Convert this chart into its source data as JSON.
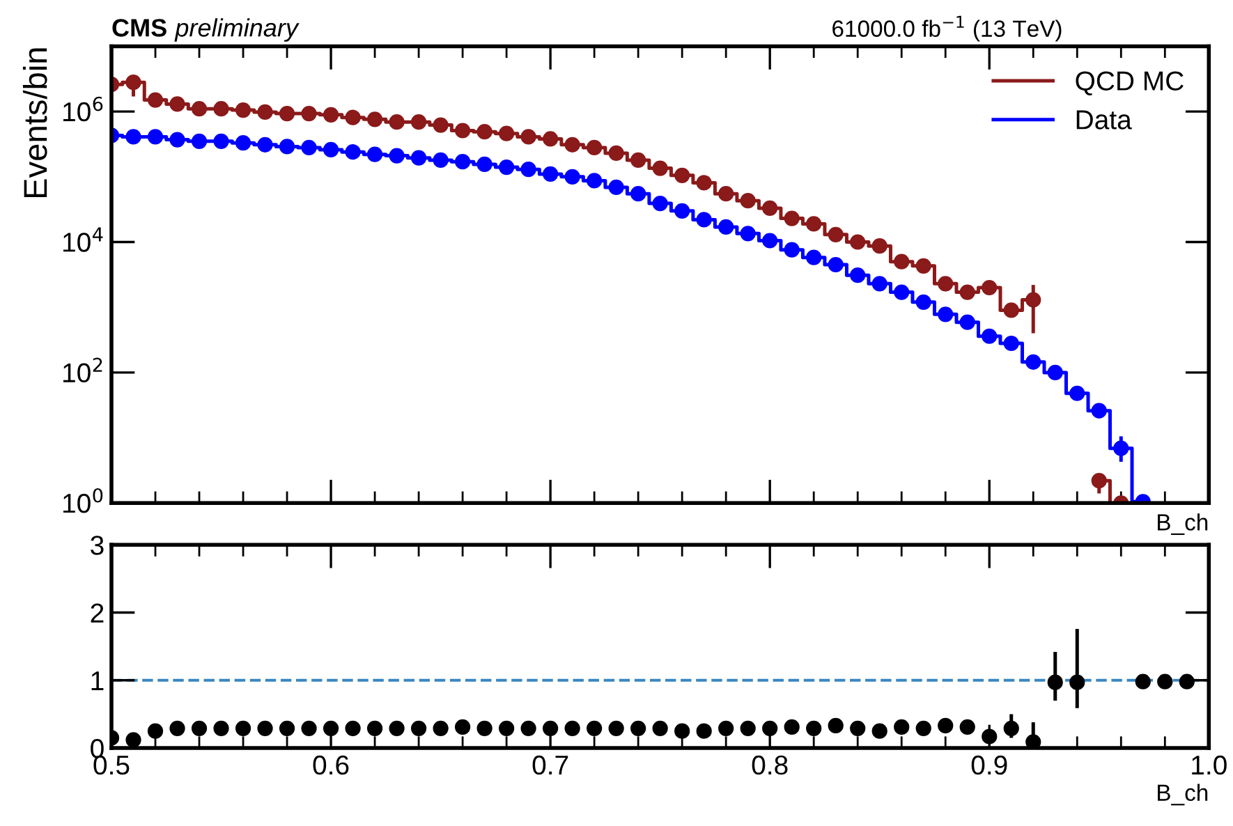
{
  "chart_data": [
    {
      "type": "step",
      "title": "CMS",
      "subtitle": "preliminary",
      "annotations": [
        "61000.0 fb$^{−1}$ (13 TeV)"
      ],
      "xlabel": "B_ch",
      "ylabel": "Events/bin",
      "log": "y",
      "marker": "circle",
      "legend": "top right",
      "tick_labels": "y",
      "x": [
        0.5,
        0.51,
        0.52,
        0.53,
        0.54,
        0.55,
        0.56,
        0.57,
        0.58,
        0.59,
        0.6,
        0.61,
        0.62,
        0.63,
        0.64,
        0.65,
        0.66,
        0.67,
        0.68,
        0.69,
        0.7,
        0.71,
        0.72,
        0.73,
        0.74,
        0.75,
        0.76,
        0.77,
        0.78,
        0.79,
        0.8,
        0.81,
        0.82,
        0.83,
        0.84,
        0.85,
        0.86,
        0.87,
        0.88,
        0.89,
        0.9,
        0.91,
        0.92,
        0.93,
        0.94,
        0.95,
        0.96,
        0.97
      ],
      "series": [
        {
          "name": "QCD MC",
          "color": "#8b1a1a",
          "values": [
            2600000,
            2800000,
            1500000,
            1300000,
            1100000,
            1100000,
            1050000,
            980000,
            930000,
            930000,
            890000,
            810000,
            760000,
            690000,
            690000,
            620000,
            510000,
            490000,
            460000,
            410000,
            380000,
            310000,
            280000,
            230000,
            180000,
            135000,
            105000,
            81000,
            55000,
            43000,
            33000,
            23000,
            19000,
            13000,
            10000,
            8700,
            5000,
            4300,
            2300,
            1700,
            2000,
            900,
            1300,
            null,
            null,
            2.2,
            1.0,
            null
          ],
          "errors": [
            null,
            [
              1700000,
              3600000
            ],
            null,
            null,
            null,
            null,
            null,
            null,
            null,
            null,
            null,
            null,
            null,
            null,
            null,
            null,
            null,
            null,
            null,
            null,
            null,
            null,
            null,
            null,
            null,
            null,
            null,
            null,
            null,
            null,
            null,
            null,
            null,
            null,
            null,
            null,
            null,
            null,
            [
              1900,
              2800
            ],
            null,
            null,
            [
              700,
              1100
            ],
            [
              400,
              2200
            ],
            null,
            null,
            [
              1.4,
              2.8
            ],
            null,
            null
          ]
        },
        {
          "name": "Data",
          "color": "#0000ff",
          "values": [
            430000,
            410000,
            410000,
            370000,
            350000,
            350000,
            330000,
            310000,
            290000,
            280000,
            260000,
            240000,
            220000,
            210000,
            195000,
            180000,
            170000,
            155000,
            140000,
            130000,
            110000,
            100000,
            87000,
            69000,
            55000,
            39000,
            30000,
            22000,
            17000,
            13500,
            10500,
            7600,
            5800,
            4500,
            3100,
            2300,
            1700,
            1200,
            780,
            590,
            360,
            280,
            145,
            100,
            48,
            26,
            6.9,
            1.05
          ],
          "errors": [
            null,
            null,
            null,
            null,
            null,
            null,
            null,
            null,
            null,
            null,
            null,
            null,
            null,
            null,
            null,
            null,
            null,
            null,
            null,
            null,
            null,
            null,
            null,
            null,
            null,
            null,
            null,
            null,
            null,
            null,
            null,
            null,
            null,
            null,
            null,
            null,
            null,
            null,
            null,
            null,
            null,
            null,
            null,
            null,
            null,
            [
              20,
              32
            ],
            [
              4.3,
              10.5
            ],
            null
          ]
        }
      ],
      "xlim": [
        0.5,
        1.0
      ],
      "xticks": [
        0.5,
        {
          "value": 0.52,
          "label": null
        },
        {
          "value": 0.54,
          "label": null
        },
        {
          "value": 0.56,
          "label": null
        },
        {
          "value": 0.58,
          "label": null
        },
        0.6,
        {
          "value": 0.62,
          "label": null
        },
        {
          "value": 0.64,
          "label": null
        },
        {
          "value": 0.66,
          "label": null
        },
        {
          "value": 0.68,
          "label": null
        },
        0.7,
        {
          "value": 0.72,
          "label": null
        },
        {
          "value": 0.74,
          "label": null
        },
        {
          "value": 0.76,
          "label": null
        },
        {
          "value": 0.78,
          "label": null
        },
        0.8,
        {
          "value": 0.82,
          "label": null
        },
        {
          "value": 0.84,
          "label": null
        },
        {
          "value": 0.86,
          "label": null
        },
        {
          "value": 0.88,
          "label": null
        },
        0.9,
        {
          "value": 0.92,
          "label": null
        },
        {
          "value": 0.94,
          "label": null
        },
        {
          "value": 0.96,
          "label": null
        },
        {
          "value": 0.98,
          "label": null
        },
        1.0
      ],
      "ylim": [
        1,
        10000000
      ],
      "yticks": [
        {
          "value": 1,
          "label": "10$^{0}$"
        },
        {
          "value": 100,
          "label": "10$^{2}$"
        },
        {
          "value": 10000,
          "label": "10$^{4}$"
        },
        {
          "value": 1000000,
          "label": "10$^{6}$"
        }
      ]
    },
    {
      "type": "scatter",
      "xlabel": "B_ch",
      "marker": "circle",
      "x": [
        0.5,
        0.51,
        0.52,
        0.53,
        0.54,
        0.55,
        0.56,
        0.57,
        0.58,
        0.59,
        0.6,
        0.61,
        0.62,
        0.63,
        0.64,
        0.65,
        0.66,
        0.67,
        0.68,
        0.69,
        0.7,
        0.71,
        0.72,
        0.73,
        0.74,
        0.75,
        0.76,
        0.77,
        0.78,
        0.79,
        0.8,
        0.81,
        0.82,
        0.83,
        0.84,
        0.85,
        0.86,
        0.87,
        0.88,
        0.89,
        0.9,
        0.91,
        0.92,
        0.93,
        0.94,
        0.95,
        0.96,
        0.97,
        0.98,
        0.99
      ],
      "series": [
        {
          "color": "#000000",
          "values": [
            0.15,
            0.12,
            0.25,
            0.29,
            0.29,
            0.29,
            0.29,
            0.29,
            0.29,
            0.29,
            0.29,
            0.29,
            0.29,
            0.29,
            0.29,
            0.29,
            0.31,
            0.29,
            0.29,
            0.29,
            0.29,
            0.29,
            0.29,
            0.29,
            0.29,
            0.29,
            0.25,
            0.25,
            0.29,
            0.29,
            0.29,
            0.31,
            0.29,
            0.33,
            0.29,
            0.25,
            0.31,
            0.29,
            0.33,
            0.31,
            0.17,
            0.29,
            0.09,
            0.97,
            0.97,
            null,
            null,
            0.98,
            0.98,
            0.98
          ],
          "errors": [
            null,
            null,
            null,
            null,
            null,
            null,
            null,
            null,
            null,
            null,
            null,
            null,
            null,
            null,
            null,
            null,
            null,
            null,
            null,
            null,
            null,
            null,
            null,
            null,
            null,
            null,
            null,
            null,
            null,
            null,
            null,
            null,
            null,
            null,
            null,
            null,
            null,
            null,
            [
              0.26,
              0.42
            ],
            [
              0.25,
              0.4
            ],
            null,
            [
              0.15,
              0.5
            ],
            [
              0,
              0.38
            ],
            [
              0.7,
              1.42
            ],
            [
              0.59,
              1.76
            ],
            null,
            null,
            null,
            null,
            null
          ]
        }
      ],
      "ref_lines": [
        {
          "axis": "y",
          "value": 1,
          "color": "#3a87c0",
          "line_style": "dashed"
        }
      ],
      "xlim": [
        0.5,
        1.0
      ],
      "xticks": [
        0.5,
        {
          "value": 0.52,
          "label": null
        },
        {
          "value": 0.54,
          "label": null
        },
        {
          "value": 0.56,
          "label": null
        },
        {
          "value": 0.58,
          "label": null
        },
        0.6,
        {
          "value": 0.62,
          "label": null
        },
        {
          "value": 0.64,
          "label": null
        },
        {
          "value": 0.66,
          "label": null
        },
        {
          "value": 0.68,
          "label": null
        },
        0.7,
        {
          "value": 0.72,
          "label": null
        },
        {
          "value": 0.74,
          "label": null
        },
        {
          "value": 0.76,
          "label": null
        },
        {
          "value": 0.78,
          "label": null
        },
        0.8,
        {
          "value": 0.82,
          "label": null
        },
        {
          "value": 0.84,
          "label": null
        },
        {
          "value": 0.86,
          "label": null
        },
        {
          "value": 0.88,
          "label": null
        },
        0.9,
        {
          "value": 0.92,
          "label": null
        },
        {
          "value": 0.94,
          "label": null
        },
        {
          "value": 0.96,
          "label": null
        },
        {
          "value": 0.98,
          "label": null
        },
        {
          "value": 1.0,
          "label": "1.0"
        }
      ],
      "ylim": [
        0,
        3
      ],
      "yticks": [
        0,
        1,
        2,
        3
      ]
    }
  ]
}
